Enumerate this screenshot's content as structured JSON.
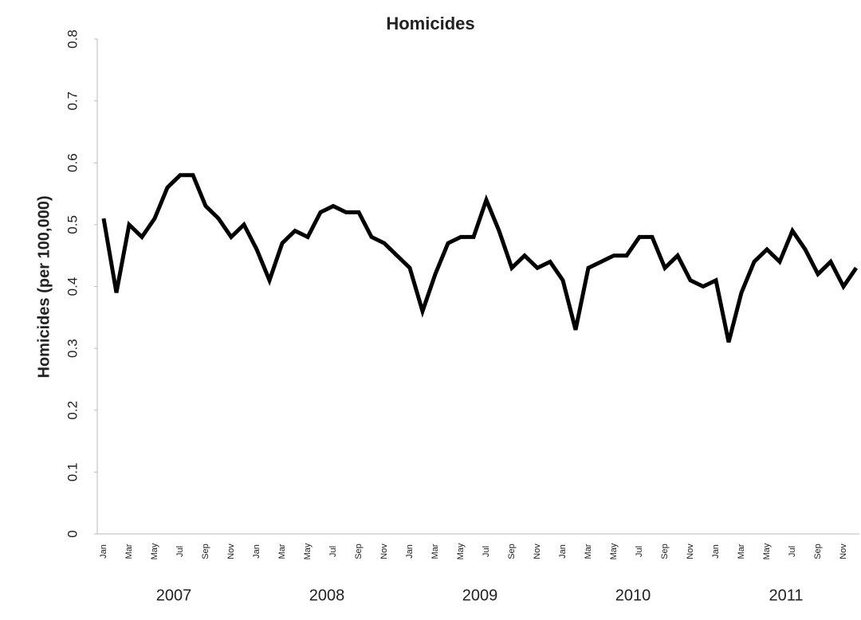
{
  "chart_data": {
    "type": "line",
    "title": "Homicides",
    "y_label": "Homicides (per 100,000)",
    "categories": [
      "Jan",
      null,
      "Mar",
      null,
      "May",
      null,
      "Jul",
      null,
      "Sep",
      null,
      "Nov",
      null,
      "Jan",
      null,
      "Mar",
      null,
      "May",
      null,
      "Jul",
      null,
      "Sep",
      null,
      "Nov",
      null,
      "Jan",
      null,
      "Mar",
      null,
      "May",
      null,
      "Jul",
      null,
      "Sep",
      null,
      "Nov",
      null,
      "Jan",
      null,
      "Mar",
      null,
      "May",
      null,
      "Jul",
      null,
      "Sep",
      null,
      "Nov",
      null,
      "Jan",
      null,
      "Mar",
      null,
      "May",
      null,
      "Jul",
      null,
      "Sep",
      null,
      "Nov",
      null
    ],
    "years": [
      "2007",
      "2008",
      "2009",
      "2010",
      "2011"
    ],
    "values": [
      0.51,
      0.39,
      0.5,
      0.48,
      0.51,
      0.56,
      0.58,
      0.58,
      0.53,
      0.51,
      0.48,
      0.5,
      0.46,
      0.41,
      0.47,
      0.49,
      0.48,
      0.52,
      0.53,
      0.52,
      0.52,
      0.48,
      0.47,
      0.45,
      0.43,
      0.36,
      0.42,
      0.47,
      0.48,
      0.48,
      0.54,
      0.49,
      0.43,
      0.45,
      0.43,
      0.44,
      0.41,
      0.33,
      0.43,
      0.44,
      0.45,
      0.45,
      0.48,
      0.48,
      0.43,
      0.45,
      0.41,
      0.4,
      0.41,
      0.31,
      0.39,
      0.44,
      0.46,
      0.44,
      0.49,
      0.46,
      0.42,
      0.44,
      0.4,
      0.43
    ],
    "color": "#000000",
    "ylim": [
      0,
      0.8
    ],
    "yticks": [
      0,
      0.1,
      0.2,
      0.3,
      0.4,
      0.5,
      0.6,
      0.7,
      0.8
    ],
    "grid": false
  }
}
